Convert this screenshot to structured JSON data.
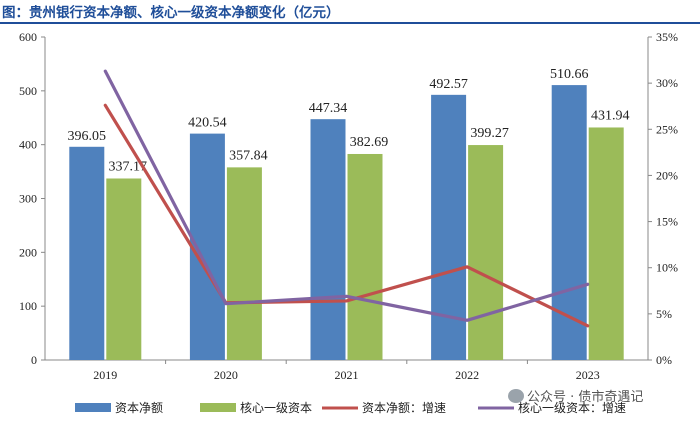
{
  "figure_title": "图：贵州银行资本净额、核心一级资本净额变化（亿元）",
  "chart_data": {
    "type": "bar",
    "categories": [
      "2019",
      "2020",
      "2021",
      "2022",
      "2023"
    ],
    "series": [
      {
        "name": "资本净额",
        "kind": "bar",
        "axis": "left",
        "color": "#4f81bd",
        "values": [
          396.05,
          420.54,
          447.34,
          492.57,
          510.66
        ]
      },
      {
        "name": "核心一级资本",
        "kind": "bar",
        "axis": "left",
        "color": "#9bbb59",
        "values": [
          337.17,
          357.84,
          382.69,
          399.27,
          431.94
        ]
      },
      {
        "name": "资本净额：增速",
        "kind": "line",
        "axis": "right",
        "color": "#c0504d",
        "values": [
          27.6,
          6.2,
          6.4,
          10.1,
          3.7
        ]
      },
      {
        "name": "核心一级资本：增速",
        "kind": "line",
        "axis": "right",
        "color": "#8064a2",
        "values": [
          31.3,
          6.1,
          6.9,
          4.3,
          8.2
        ]
      }
    ],
    "left_axis": {
      "min": 0,
      "max": 600,
      "ticks": [
        "0",
        "100",
        "200",
        "300",
        "400",
        "500",
        "600"
      ]
    },
    "right_axis": {
      "min": 0,
      "max": 35,
      "ticks": [
        "0%",
        "5%",
        "10%",
        "15%",
        "20%",
        "25%",
        "30%",
        "35%"
      ]
    },
    "bar_labels": [
      [
        "396.05",
        "420.54",
        "447.34",
        "492.57",
        "510.66"
      ],
      [
        "337.17",
        "357.84",
        "382.69",
        "399.27",
        "431.94"
      ]
    ],
    "legend_position": "bottom"
  },
  "watermark": "公众号 · 债市奇遇记"
}
